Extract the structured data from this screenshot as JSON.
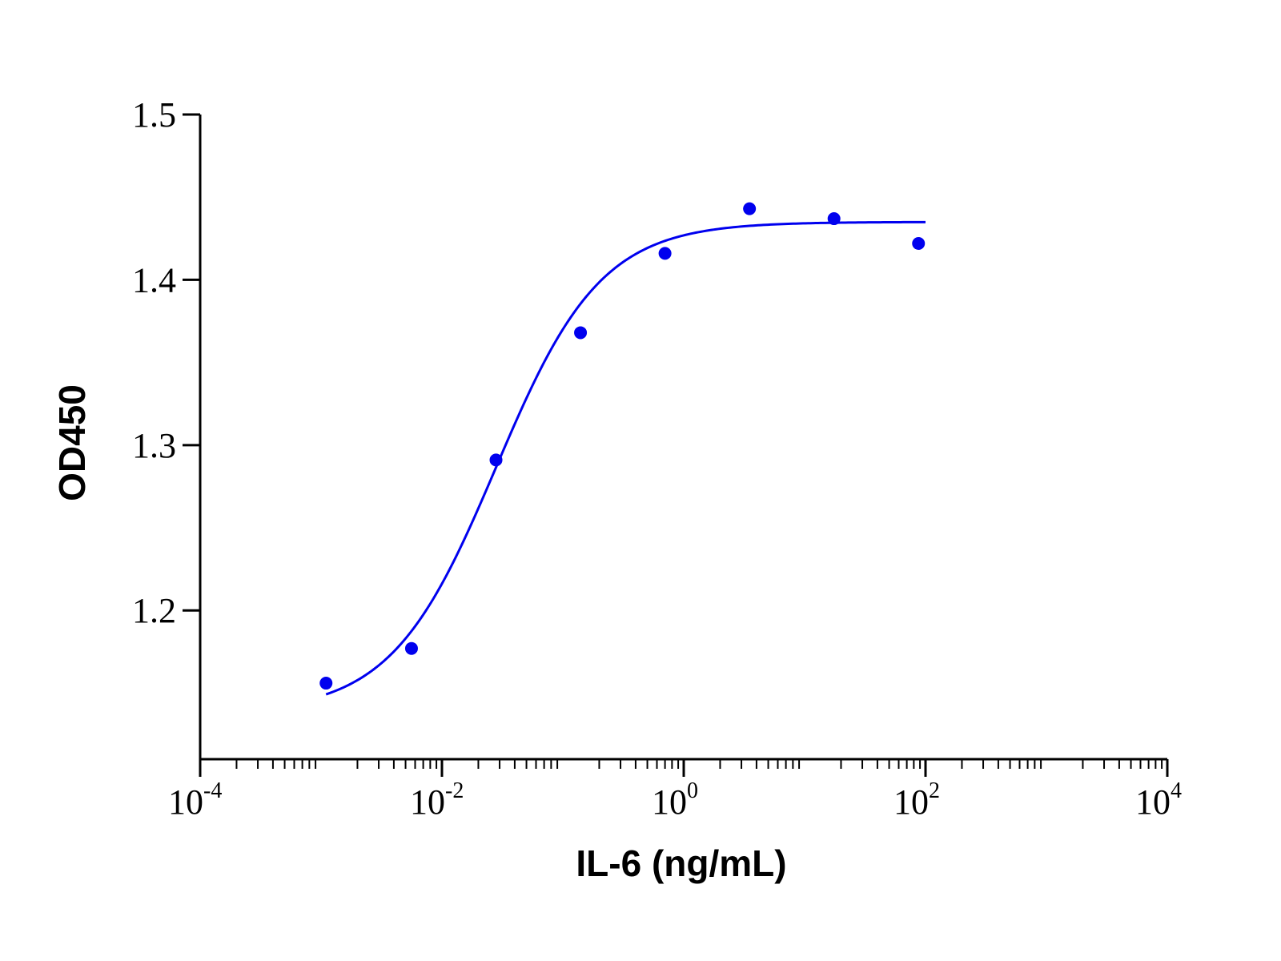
{
  "chart_data": {
    "type": "scatter",
    "title": "",
    "xlabel": "IL-6 (ng/mL)",
    "ylabel": "OD450",
    "x_scale": "log10",
    "xlim": [
      0.0001,
      10000
    ],
    "ylim": [
      1.11,
      1.5
    ],
    "x_ticks": [
      {
        "base": "10",
        "exp": "-4",
        "value": 0.0001
      },
      {
        "base": "10",
        "exp": "-2",
        "value": 0.01
      },
      {
        "base": "10",
        "exp": "0",
        "value": 1
      },
      {
        "base": "10",
        "exp": "2",
        "value": 100
      },
      {
        "base": "10",
        "exp": "4",
        "value": 10000
      }
    ],
    "y_ticks": [
      {
        "label": "1.2",
        "value": 1.2
      },
      {
        "label": "1.3",
        "value": 1.3
      },
      {
        "label": "1.4",
        "value": 1.4
      },
      {
        "label": "1.5",
        "value": 1.5
      }
    ],
    "grid": false,
    "legend": "none",
    "series": [
      {
        "color": "#0000ee",
        "points": [
          {
            "x": 0.0011,
            "y": 1.156
          },
          {
            "x": 0.0056,
            "y": 1.177
          },
          {
            "x": 0.028,
            "y": 1.291
          },
          {
            "x": 0.14,
            "y": 1.368
          },
          {
            "x": 0.7,
            "y": 1.416
          },
          {
            "x": 3.5,
            "y": 1.443
          },
          {
            "x": 17.5,
            "y": 1.437
          },
          {
            "x": 87.5,
            "y": 1.422
          }
        ],
        "fit": {
          "model": "4PL",
          "bottom": 1.138,
          "top": 1.435,
          "ec50": 0.028,
          "hill": 1.0,
          "x_range": [
            0.0011,
            100
          ]
        }
      }
    ]
  }
}
